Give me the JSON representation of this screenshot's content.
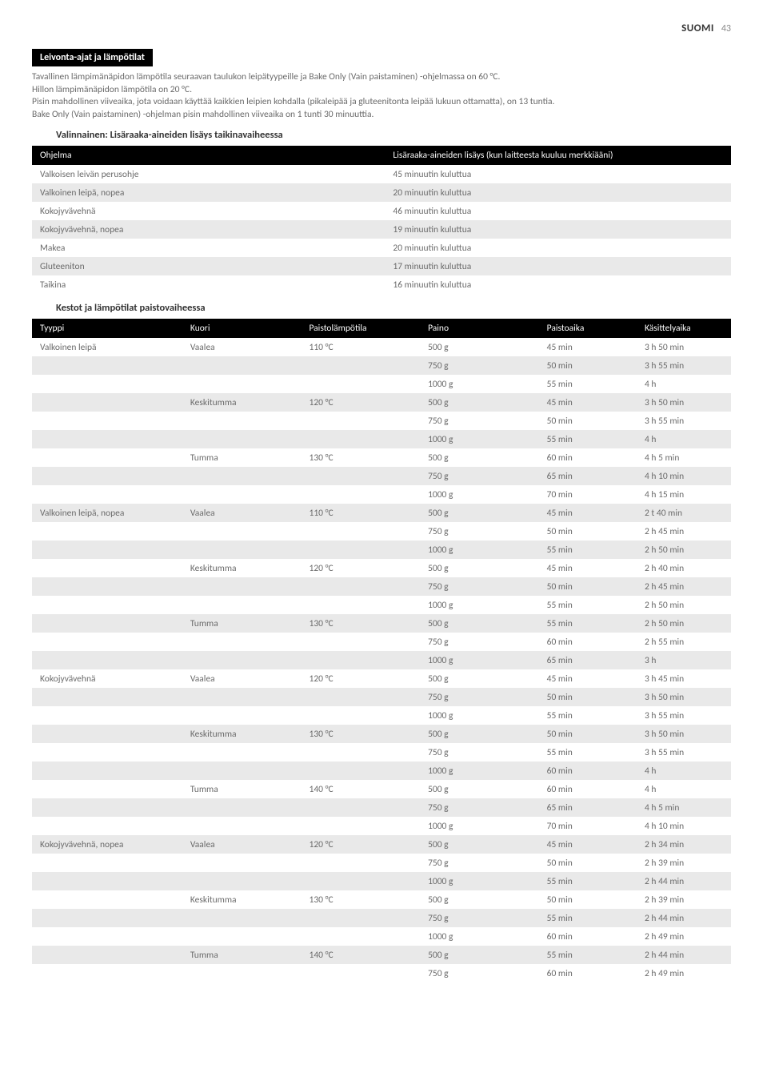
{
  "header": {
    "lang": "SUOMI",
    "page": "43"
  },
  "section_bar": "Leivonta-ajat ja lämpötilat",
  "intro_lines": [
    "Tavallinen lämpimänäpidon lämpötila seuraavan taulukon leipätyypeille ja Bake Only (Vain paistaminen) -ohjelmassa on 60 °C.",
    "Hillon lämpimänäpidon lämpötila on 20 °C.",
    "Pisin mahdollinen viiveaika, jota voidaan käyttää kaikkien leipien kohdalla (pikaleipää ja gluteenitonta leipää lukuun ottamatta), on 13 tuntia.",
    "Bake Only (Vain paistaminen) -ohjelman pisin mahdollinen viiveaika on 1 tunti 30 minuuttia."
  ],
  "t1": {
    "title": "Valinnainen: Lisäraaka-aineiden lisäys taikinavaiheessa",
    "headers": [
      "Ohjelma",
      "Lisäraaka-aineiden lisäys (kun laitteesta kuuluu merkkiääni)"
    ],
    "rows": [
      [
        "Valkoisen leivän perusohje",
        "45 minuutin kuluttua"
      ],
      [
        "Valkoinen leipä, nopea",
        "20 minuutin kuluttua"
      ],
      [
        "Kokojyvävehnä",
        "46 minuutin kuluttua"
      ],
      [
        "Kokojyvävehnä, nopea",
        "19 minuutin kuluttua"
      ],
      [
        "Makea",
        "20 minuutin kuluttua"
      ],
      [
        "Gluteeniton",
        "17 minuutin kuluttua"
      ],
      [
        "Taikina",
        "16 minuutin kuluttua"
      ]
    ]
  },
  "t2": {
    "title": "Kestot ja lämpötilat paistovaiheessa",
    "headers": [
      "Tyyppi",
      "Kuori",
      "Paistolämpötila",
      "Paino",
      "Paistoaika",
      "Käsittelyaika"
    ],
    "rows": [
      {
        "c": [
          "Valkoinen leipä",
          "Vaalea",
          "110 °C",
          "500 g",
          "45 min",
          "3 h 50 min"
        ],
        "s": false
      },
      {
        "c": [
          "",
          "",
          "",
          "750 g",
          "50 min",
          "3 h 55 min"
        ],
        "s": true
      },
      {
        "c": [
          "",
          "",
          "",
          "1000 g",
          "55 min",
          "4 h"
        ],
        "s": false
      },
      {
        "c": [
          "",
          "Keskitumma",
          "120 °C",
          "500 g",
          "45 min",
          "3 h 50 min"
        ],
        "s": true
      },
      {
        "c": [
          "",
          "",
          "",
          "750 g",
          "50 min",
          "3 h 55 min"
        ],
        "s": false
      },
      {
        "c": [
          "",
          "",
          "",
          "1000 g",
          "55 min",
          "4 h"
        ],
        "s": true
      },
      {
        "c": [
          "",
          "Tumma",
          "130 °C",
          "500 g",
          "60 min",
          "4 h 5 min"
        ],
        "s": false
      },
      {
        "c": [
          "",
          "",
          "",
          "750 g",
          "65 min",
          "4 h 10 min"
        ],
        "s": true
      },
      {
        "c": [
          "",
          "",
          "",
          "1000 g",
          "70 min",
          "4 h 15 min"
        ],
        "s": false
      },
      {
        "c": [
          "Valkoinen leipä, nopea",
          "Vaalea",
          "110 °C",
          "500 g",
          "45 min",
          "2 t 40 min"
        ],
        "s": true
      },
      {
        "c": [
          "",
          "",
          "",
          "750 g",
          "50 min",
          "2 h 45 min"
        ],
        "s": false
      },
      {
        "c": [
          "",
          "",
          "",
          "1000 g",
          "55 min",
          "2 h 50 min"
        ],
        "s": true
      },
      {
        "c": [
          "",
          "Keskitumma",
          "120 °C",
          "500 g",
          "45 min",
          "2 h 40 min"
        ],
        "s": false
      },
      {
        "c": [
          "",
          "",
          "",
          "750 g",
          "50 min",
          "2 h 45 min"
        ],
        "s": true
      },
      {
        "c": [
          "",
          "",
          "",
          "1000 g",
          "55 min",
          "2 h 50 min"
        ],
        "s": false
      },
      {
        "c": [
          "",
          "Tumma",
          "130 °C",
          "500 g",
          "55 min",
          "2 h 50 min"
        ],
        "s": true
      },
      {
        "c": [
          "",
          "",
          "",
          "750 g",
          "60 min",
          "2 h 55 min"
        ],
        "s": false
      },
      {
        "c": [
          "",
          "",
          "",
          "1000 g",
          "65 min",
          "3 h"
        ],
        "s": true
      },
      {
        "c": [
          "Kokojyvävehnä",
          "Vaalea",
          "120 °C",
          "500 g",
          "45 min",
          "3 h 45 min"
        ],
        "s": false
      },
      {
        "c": [
          "",
          "",
          "",
          "750 g",
          "50 min",
          "3 h 50 min"
        ],
        "s": true
      },
      {
        "c": [
          "",
          "",
          "",
          "1000 g",
          "55 min",
          "3 h 55 min"
        ],
        "s": false
      },
      {
        "c": [
          "",
          "Keskitumma",
          "130 °C",
          "500 g",
          "50 min",
          "3 h 50 min"
        ],
        "s": true
      },
      {
        "c": [
          "",
          "",
          "",
          "750 g",
          "55 min",
          "3 h 55 min"
        ],
        "s": false
      },
      {
        "c": [
          "",
          "",
          "",
          "1000 g",
          "60 min",
          "4 h"
        ],
        "s": true
      },
      {
        "c": [
          "",
          "Tumma",
          "140 °C",
          "500 g",
          "60 min",
          "4 h"
        ],
        "s": false
      },
      {
        "c": [
          "",
          "",
          "",
          "750 g",
          "65 min",
          "4 h 5 min"
        ],
        "s": true
      },
      {
        "c": [
          "",
          "",
          "",
          "1000 g",
          "70 min",
          "4 h 10 min"
        ],
        "s": false
      },
      {
        "c": [
          "Kokojyvävehnä, nopea",
          "Vaalea",
          "120 °C",
          "500 g",
          "45 min",
          "2 h 34 min"
        ],
        "s": true
      },
      {
        "c": [
          "",
          "",
          "",
          "750 g",
          "50 min",
          "2 h 39 min"
        ],
        "s": false
      },
      {
        "c": [
          "",
          "",
          "",
          "1000 g",
          "55 min",
          "2 h 44 min"
        ],
        "s": true
      },
      {
        "c": [
          "",
          "Keskitumma",
          "130 °C",
          "500 g",
          "50 min",
          "2 h 39 min"
        ],
        "s": false
      },
      {
        "c": [
          "",
          "",
          "",
          "750 g",
          "55 min",
          "2 h 44 min"
        ],
        "s": true
      },
      {
        "c": [
          "",
          "",
          "",
          "1000 g",
          "60 min",
          "2 h 49 min"
        ],
        "s": false
      },
      {
        "c": [
          "",
          "Tumma",
          "140 °C",
          "500 g",
          "55 min",
          "2 h 44 min"
        ],
        "s": true
      },
      {
        "c": [
          "",
          "",
          "",
          "750 g",
          "60 min",
          "2 h 49 min"
        ],
        "s": false
      }
    ]
  }
}
